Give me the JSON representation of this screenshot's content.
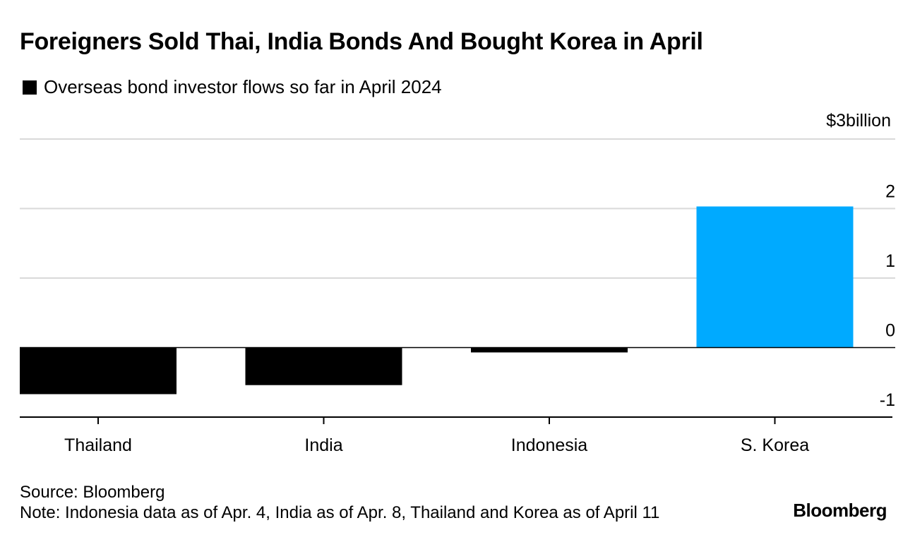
{
  "chart_data": {
    "type": "bar",
    "title": "Foreigners Sold Thai, India Bonds And Bought Korea in April",
    "legend": [
      {
        "label": "Overseas bond investor flows so far in April 2024",
        "color": "#000000"
      }
    ],
    "unit_label": "$3billion",
    "categories": [
      "Thailand",
      "India",
      "Indonesia",
      "S. Korea"
    ],
    "values": [
      -0.67,
      -0.54,
      -0.07,
      2.03
    ],
    "colors": [
      "#000000",
      "#000000",
      "#000000",
      "#00aaff"
    ],
    "y_ticks": [
      {
        "value": 2,
        "label": "2"
      },
      {
        "value": 1,
        "label": "1"
      },
      {
        "value": 0,
        "label": "0"
      },
      {
        "value": -1,
        "label": "-1"
      }
    ],
    "ylim": [
      -1,
      3
    ],
    "xlabel": "",
    "ylabel": "",
    "grid": true
  },
  "footer": {
    "source": "Source: Bloomberg",
    "note": "Note: Indonesia data as of Apr. 4, India as of Apr. 8, Thailand and Korea as of April 11",
    "brand": "Bloomberg"
  }
}
